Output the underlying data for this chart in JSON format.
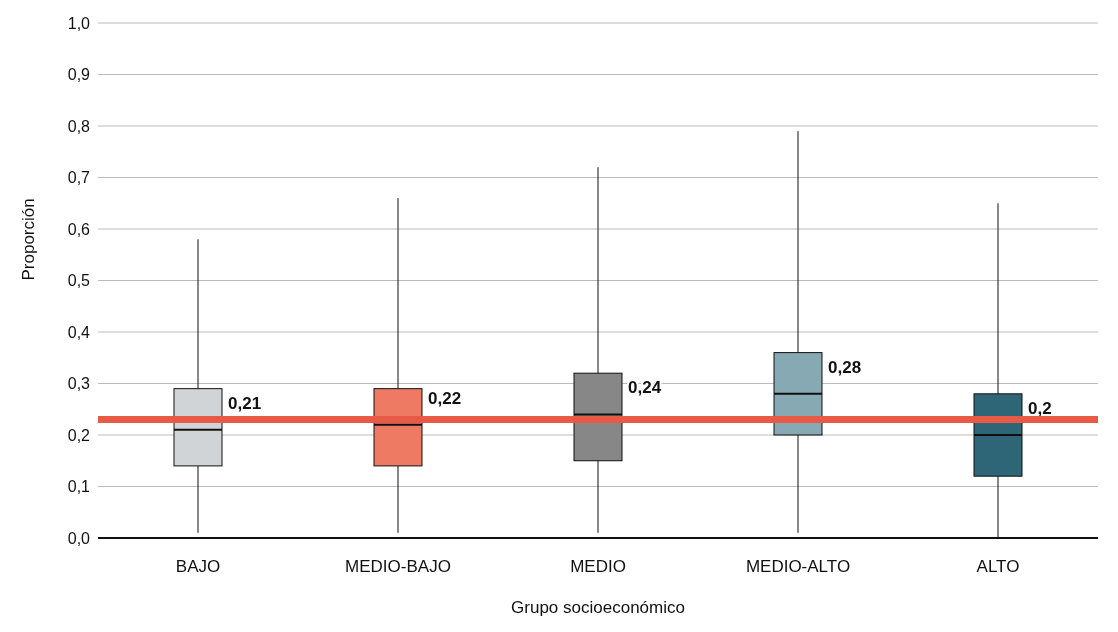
{
  "chart_data": {
    "type": "box",
    "xlabel": "Grupo socioeconómico",
    "ylabel": "Proporción",
    "categories": [
      "BAJO",
      "MEDIO-BAJO",
      "MEDIO",
      "MEDIO-ALTO",
      "ALTO"
    ],
    "colors": [
      "#d1d4d7",
      "#ee7a64",
      "#878787",
      "#87a9b4",
      "#2e6677"
    ],
    "boxes": [
      {
        "low": 0.01,
        "q1": 0.14,
        "median": 0.21,
        "q3": 0.29,
        "high": 0.58
      },
      {
        "low": 0.01,
        "q1": 0.14,
        "median": 0.22,
        "q3": 0.29,
        "high": 0.66
      },
      {
        "low": 0.01,
        "q1": 0.15,
        "median": 0.24,
        "q3": 0.32,
        "high": 0.72
      },
      {
        "low": 0.01,
        "q1": 0.2,
        "median": 0.28,
        "q3": 0.36,
        "high": 0.79
      },
      {
        "low": 0,
        "q1": 0.12,
        "median": 0.2,
        "q3": 0.28,
        "high": 0.65
      }
    ],
    "value_labels": [
      "0,21",
      "0,22",
      "0,24",
      "0,28",
      "0,2"
    ],
    "ylim": [
      0,
      1
    ],
    "yticks": [
      {
        "value": 0,
        "label": "0,0"
      },
      {
        "value": 0.1,
        "label": "0,1"
      },
      {
        "value": 0.2,
        "label": "0,2"
      },
      {
        "value": 0.3,
        "label": "0,3"
      },
      {
        "value": 0.4,
        "label": "0,4"
      },
      {
        "value": 0.5,
        "label": "0,5"
      },
      {
        "value": 0.6,
        "label": "0,6"
      },
      {
        "value": 0.7,
        "label": "0,7"
      },
      {
        "value": 0.8,
        "label": "0,8"
      },
      {
        "value": 0.9,
        "label": "0,9"
      },
      {
        "value": 1,
        "label": "1,0"
      }
    ],
    "grid": "y",
    "legend": false,
    "ref_lines": [
      {
        "axis": "y",
        "value": 0.23,
        "label": null,
        "color": "#e85a45"
      }
    ]
  }
}
